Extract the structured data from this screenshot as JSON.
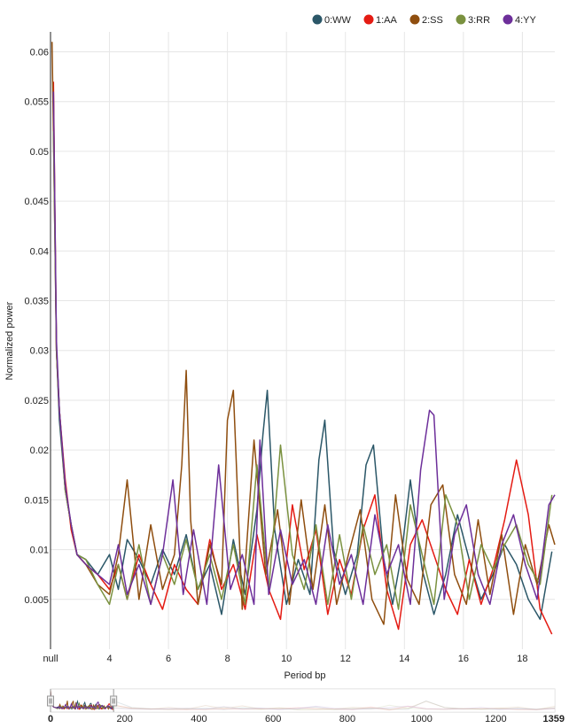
{
  "chart_data": {
    "type": "line",
    "title": "",
    "xlabel": "Period bp",
    "ylabel": "Normalized power",
    "xlim": [
      2,
      19.1
    ],
    "ylim": [
      0,
      0.062
    ],
    "x_ticks": [
      {
        "value": 2,
        "label": "null"
      },
      {
        "value": 4,
        "label": "4"
      },
      {
        "value": 6,
        "label": "6"
      },
      {
        "value": 8,
        "label": "8"
      },
      {
        "value": 10,
        "label": "10"
      },
      {
        "value": 12,
        "label": "12"
      },
      {
        "value": 14,
        "label": "14"
      },
      {
        "value": 16,
        "label": "16"
      },
      {
        "value": 18,
        "label": "18"
      }
    ],
    "y_ticks": [
      {
        "value": 0.005,
        "label": "0.005"
      },
      {
        "value": 0.01,
        "label": "0.01"
      },
      {
        "value": 0.015,
        "label": "0.015"
      },
      {
        "value": 0.02,
        "label": "0.02"
      },
      {
        "value": 0.025,
        "label": "0.025"
      },
      {
        "value": 0.03,
        "label": "0.03"
      },
      {
        "value": 0.035,
        "label": "0.035"
      },
      {
        "value": 0.04,
        "label": "0.04"
      },
      {
        "value": 0.045,
        "label": "0.045"
      },
      {
        "value": 0.05,
        "label": "0.05"
      },
      {
        "value": 0.055,
        "label": "0.055"
      },
      {
        "value": 0.06,
        "label": "0.06"
      }
    ],
    "grid": true,
    "legend_position": "top-right",
    "series": [
      {
        "name": "0:WW",
        "color": "#2b5768",
        "x": [
          2.1,
          2.2,
          2.3,
          2.5,
          2.7,
          2.9,
          3.2,
          3.6,
          4.0,
          4.3,
          4.6,
          5.0,
          5.4,
          5.8,
          6.2,
          6.6,
          7.0,
          7.4,
          7.8,
          8.2,
          8.6,
          9.0,
          9.2,
          9.35,
          9.6,
          10.0,
          10.4,
          10.8,
          11.1,
          11.3,
          11.6,
          12.0,
          12.4,
          12.7,
          12.95,
          13.3,
          13.6,
          13.9,
          14.2,
          14.6,
          15.0,
          15.4,
          15.8,
          16.2,
          16.6,
          17.0,
          17.4,
          17.8,
          18.2,
          18.6,
          19.0
        ],
        "y": [
          0.055,
          0.03,
          0.023,
          0.016,
          0.0125,
          0.0095,
          0.009,
          0.0075,
          0.0095,
          0.006,
          0.011,
          0.009,
          0.0065,
          0.01,
          0.0075,
          0.0115,
          0.006,
          0.0085,
          0.0035,
          0.011,
          0.0055,
          0.014,
          0.0215,
          0.026,
          0.012,
          0.0045,
          0.009,
          0.0055,
          0.019,
          0.023,
          0.01,
          0.0055,
          0.0095,
          0.0185,
          0.0205,
          0.009,
          0.0045,
          0.0095,
          0.017,
          0.008,
          0.0035,
          0.0075,
          0.0135,
          0.009,
          0.005,
          0.0075,
          0.0105,
          0.0085,
          0.005,
          0.003,
          0.0098
        ]
      },
      {
        "name": "1:AA",
        "color": "#e41b13",
        "x": [
          2.1,
          2.2,
          2.3,
          2.5,
          2.7,
          2.9,
          3.2,
          3.6,
          4.0,
          4.3,
          4.6,
          5.0,
          5.4,
          5.8,
          6.2,
          6.6,
          7.0,
          7.4,
          7.8,
          8.2,
          8.6,
          9.0,
          9.4,
          9.8,
          10.2,
          10.6,
          11.0,
          11.4,
          11.8,
          12.2,
          12.6,
          13.0,
          13.4,
          13.8,
          14.2,
          14.6,
          15.0,
          15.4,
          15.8,
          16.2,
          16.6,
          17.0,
          17.4,
          17.8,
          18.2,
          18.6,
          19.0
        ],
        "y": [
          0.057,
          0.03,
          0.024,
          0.017,
          0.012,
          0.0095,
          0.0085,
          0.0075,
          0.006,
          0.0085,
          0.005,
          0.0095,
          0.0065,
          0.004,
          0.0085,
          0.006,
          0.0045,
          0.011,
          0.006,
          0.0085,
          0.004,
          0.0115,
          0.006,
          0.003,
          0.0145,
          0.008,
          0.012,
          0.0035,
          0.009,
          0.0055,
          0.012,
          0.0155,
          0.006,
          0.002,
          0.0105,
          0.013,
          0.0095,
          0.006,
          0.0035,
          0.009,
          0.0045,
          0.008,
          0.013,
          0.019,
          0.0135,
          0.004,
          0.0015
        ]
      },
      {
        "name": "2:SS",
        "color": "#8f4e0f",
        "x": [
          2.05,
          2.1,
          2.2,
          2.3,
          2.5,
          2.7,
          2.9,
          3.2,
          3.6,
          4.0,
          4.3,
          4.6,
          5.0,
          5.4,
          5.8,
          6.2,
          6.45,
          6.6,
          6.75,
          7.0,
          7.4,
          7.8,
          8.0,
          8.2,
          8.5,
          8.9,
          9.3,
          9.7,
          10.1,
          10.5,
          10.9,
          11.3,
          11.7,
          12.1,
          12.5,
          12.9,
          13.3,
          13.7,
          14.1,
          14.5,
          14.9,
          15.3,
          15.7,
          16.1,
          16.5,
          16.9,
          17.3,
          17.7,
          18.1,
          18.5,
          18.9,
          19.1
        ],
        "y": [
          0.061,
          0.052,
          0.03,
          0.024,
          0.016,
          0.0125,
          0.0095,
          0.0085,
          0.0065,
          0.0055,
          0.0095,
          0.017,
          0.005,
          0.0125,
          0.006,
          0.0095,
          0.0185,
          0.028,
          0.013,
          0.0045,
          0.0105,
          0.0065,
          0.023,
          0.026,
          0.004,
          0.021,
          0.0075,
          0.014,
          0.0045,
          0.015,
          0.006,
          0.0145,
          0.0045,
          0.0095,
          0.014,
          0.005,
          0.0025,
          0.0155,
          0.007,
          0.0045,
          0.0145,
          0.0165,
          0.0075,
          0.0045,
          0.013,
          0.0055,
          0.0115,
          0.0035,
          0.0105,
          0.0065,
          0.0125,
          0.0105
        ]
      },
      {
        "name": "3:RR",
        "color": "#7a913f",
        "x": [
          2.1,
          2.2,
          2.3,
          2.5,
          2.7,
          2.9,
          3.2,
          3.6,
          4.0,
          4.3,
          4.6,
          5.0,
          5.4,
          5.8,
          6.2,
          6.6,
          7.0,
          7.4,
          7.8,
          8.2,
          8.6,
          9.0,
          9.4,
          9.8,
          10.2,
          10.6,
          11.0,
          11.4,
          11.8,
          12.2,
          12.6,
          13.0,
          13.4,
          13.8,
          14.2,
          14.6,
          15.0,
          15.4,
          15.8,
          16.2,
          16.6,
          17.0,
          17.4,
          17.8,
          18.2,
          18.6,
          19.0
        ],
        "y": [
          0.052,
          0.03,
          0.024,
          0.016,
          0.0125,
          0.0095,
          0.009,
          0.0065,
          0.0045,
          0.0085,
          0.005,
          0.0105,
          0.0045,
          0.0095,
          0.0065,
          0.011,
          0.006,
          0.0095,
          0.005,
          0.0105,
          0.0045,
          0.0185,
          0.006,
          0.0205,
          0.0095,
          0.006,
          0.0125,
          0.0045,
          0.0115,
          0.005,
          0.0125,
          0.0075,
          0.0105,
          0.004,
          0.0145,
          0.0095,
          0.0045,
          0.0155,
          0.0125,
          0.005,
          0.0105,
          0.008,
          0.0105,
          0.0125,
          0.0085,
          0.0065,
          0.0155
        ]
      },
      {
        "name": "4:YY",
        "color": "#6d2f9a",
        "x": [
          2.1,
          2.2,
          2.3,
          2.5,
          2.7,
          2.9,
          3.2,
          3.6,
          4.0,
          4.3,
          4.6,
          5.0,
          5.4,
          5.8,
          6.15,
          6.5,
          6.85,
          7.3,
          7.7,
          8.1,
          8.5,
          8.9,
          9.1,
          9.4,
          9.8,
          10.2,
          10.6,
          11.0,
          11.4,
          11.8,
          12.2,
          12.6,
          13.0,
          13.4,
          13.8,
          14.2,
          14.55,
          14.85,
          15.0,
          15.35,
          15.7,
          16.1,
          16.5,
          16.9,
          17.3,
          17.7,
          18.1,
          18.5,
          18.9,
          19.1
        ],
        "y": [
          0.056,
          0.031,
          0.024,
          0.0165,
          0.0125,
          0.0095,
          0.0085,
          0.0075,
          0.0065,
          0.0105,
          0.0055,
          0.0085,
          0.0045,
          0.0095,
          0.017,
          0.0055,
          0.012,
          0.0045,
          0.0185,
          0.006,
          0.0095,
          0.0045,
          0.021,
          0.0055,
          0.012,
          0.0065,
          0.009,
          0.0045,
          0.0125,
          0.0065,
          0.0095,
          0.0045,
          0.0135,
          0.0075,
          0.0105,
          0.0045,
          0.018,
          0.024,
          0.0235,
          0.005,
          0.0115,
          0.0145,
          0.0075,
          0.0045,
          0.0105,
          0.0135,
          0.0085,
          0.005,
          0.0145,
          0.0155
        ]
      }
    ],
    "navigator": {
      "ticks": [
        {
          "value": 0,
          "label": "0",
          "bold": true
        },
        {
          "value": 200,
          "label": "200",
          "bold": false
        },
        {
          "value": 400,
          "label": "400",
          "bold": false
        },
        {
          "value": 600,
          "label": "600",
          "bold": false
        },
        {
          "value": 800,
          "label": "800",
          "bold": false
        },
        {
          "value": 1000,
          "label": "1000",
          "bold": false
        },
        {
          "value": 1200,
          "label": "1200",
          "bold": false
        },
        {
          "value": 1359,
          "label": "1359",
          "bold": true
        }
      ],
      "range": [
        0,
        1359
      ],
      "selection": [
        0,
        170
      ]
    }
  }
}
